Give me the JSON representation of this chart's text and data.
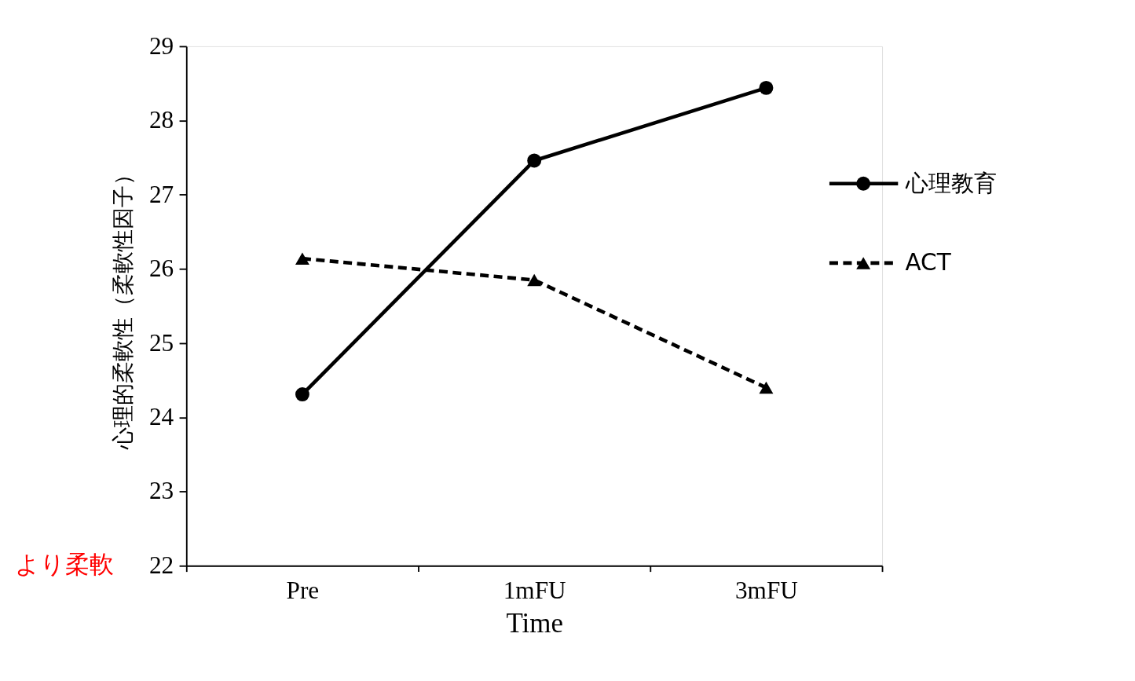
{
  "chart_data": {
    "type": "line",
    "xlabel": "Time",
    "ylabel": "心理的柔軟性（柔軟性因子）",
    "categories": [
      "Pre",
      "1mFU",
      "3mFU"
    ],
    "series": [
      {
        "name": "心理教育",
        "color": "#000000",
        "values": [
          24.31,
          27.46,
          28.44
        ],
        "marker": "circle",
        "line_style": "solid"
      },
      {
        "name": "ACT",
        "color": "#000000",
        "values": [
          26.14,
          25.85,
          24.4
        ],
        "marker": "triangle",
        "line_style": "dashed"
      }
    ],
    "ylim": [
      22,
      29
    ],
    "yticks": [
      22,
      23,
      24,
      25,
      26,
      27,
      28,
      29
    ],
    "grid": false,
    "legend": "right",
    "annotations": [
      "より柔軟"
    ]
  }
}
